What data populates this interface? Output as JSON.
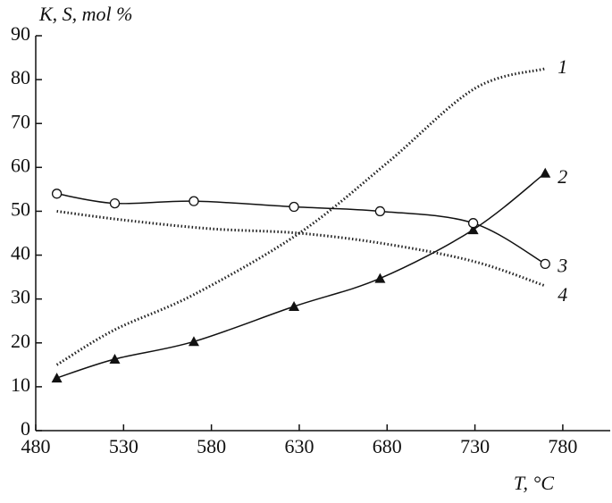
{
  "chart_data": {
    "type": "line",
    "ylabel": "K, S, mol %",
    "xlabel": "T, °C",
    "xlim": [
      480,
      807
    ],
    "ylim": [
      0,
      90
    ],
    "xticks": [
      480,
      530,
      580,
      630,
      680,
      730,
      780
    ],
    "yticks": [
      0,
      10,
      20,
      30,
      40,
      50,
      60,
      70,
      80,
      90
    ],
    "series": [
      {
        "name": "1",
        "color": "#222222",
        "style": "dotted",
        "marker": "none",
        "x": [
          492,
          525,
          570,
          630,
          680,
          730,
          770
        ],
        "values": [
          15,
          23,
          31,
          45,
          61,
          78,
          82.5
        ]
      },
      {
        "name": "2",
        "color": "#111111",
        "style": "solid",
        "marker": "triangle",
        "x": [
          492,
          525,
          570,
          627,
          676,
          729,
          770
        ],
        "values": [
          12,
          16.3,
          20.3,
          28.3,
          34.7,
          45.8,
          58.7
        ]
      },
      {
        "name": "3",
        "color": "#111111",
        "style": "solid",
        "marker": "circle",
        "x": [
          492,
          525,
          570,
          627,
          676,
          729,
          770
        ],
        "values": [
          54,
          51.8,
          52.3,
          51,
          50,
          47.3,
          38
        ]
      },
      {
        "name": "4",
        "color": "#222222",
        "style": "dotted",
        "marker": "none",
        "x": [
          492,
          530,
          580,
          630,
          680,
          730,
          770
        ],
        "values": [
          50,
          48,
          46,
          45,
          42.5,
          38.5,
          33
        ]
      }
    ]
  }
}
